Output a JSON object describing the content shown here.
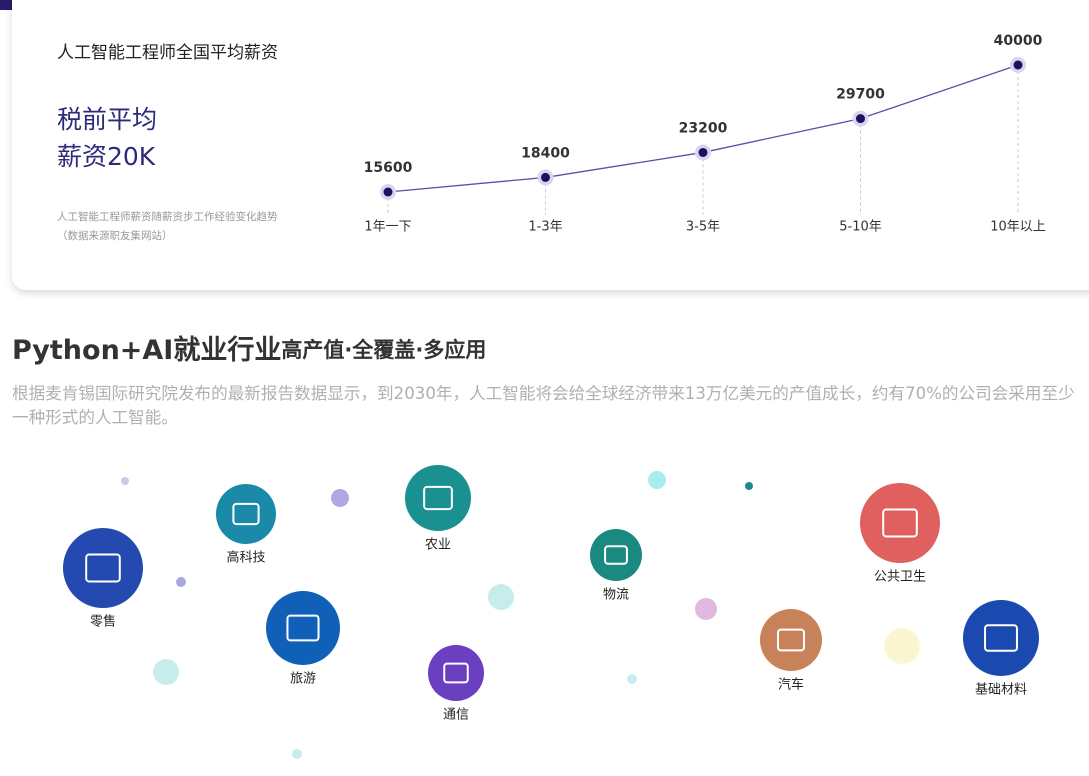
{
  "card": {
    "title": "人工智能工程师全国平均薪资",
    "headline": [
      "税前平均",
      "薪资20K"
    ],
    "note": [
      "人工智能工程师薪资随薪资步工作经验变化趋势",
      "（数据来源职友集网站）"
    ]
  },
  "chart_data": {
    "type": "line",
    "categories": [
      "1年一下",
      "1-3年",
      "3-5年",
      "5-10年",
      "10年以上"
    ],
    "values": [
      15600,
      18400,
      23200,
      29700,
      40000
    ],
    "color": "#5a4fa8"
  },
  "section": {
    "title": "Python+AI就业行业",
    "subtitle": "高产值·全覆盖·多应用",
    "text": "根据麦肯锡国际研究院发布的最新报告数据显示，到2030年，人工智能将会给全球经济带来13万亿美元的产值成长，约有70%的公司会采用至少一种形式的人工智能。"
  },
  "industries": [
    "零售",
    "高科技",
    "农业",
    "物流",
    "公共卫生",
    "旅游",
    "通信",
    "汽车",
    "基础材料"
  ]
}
